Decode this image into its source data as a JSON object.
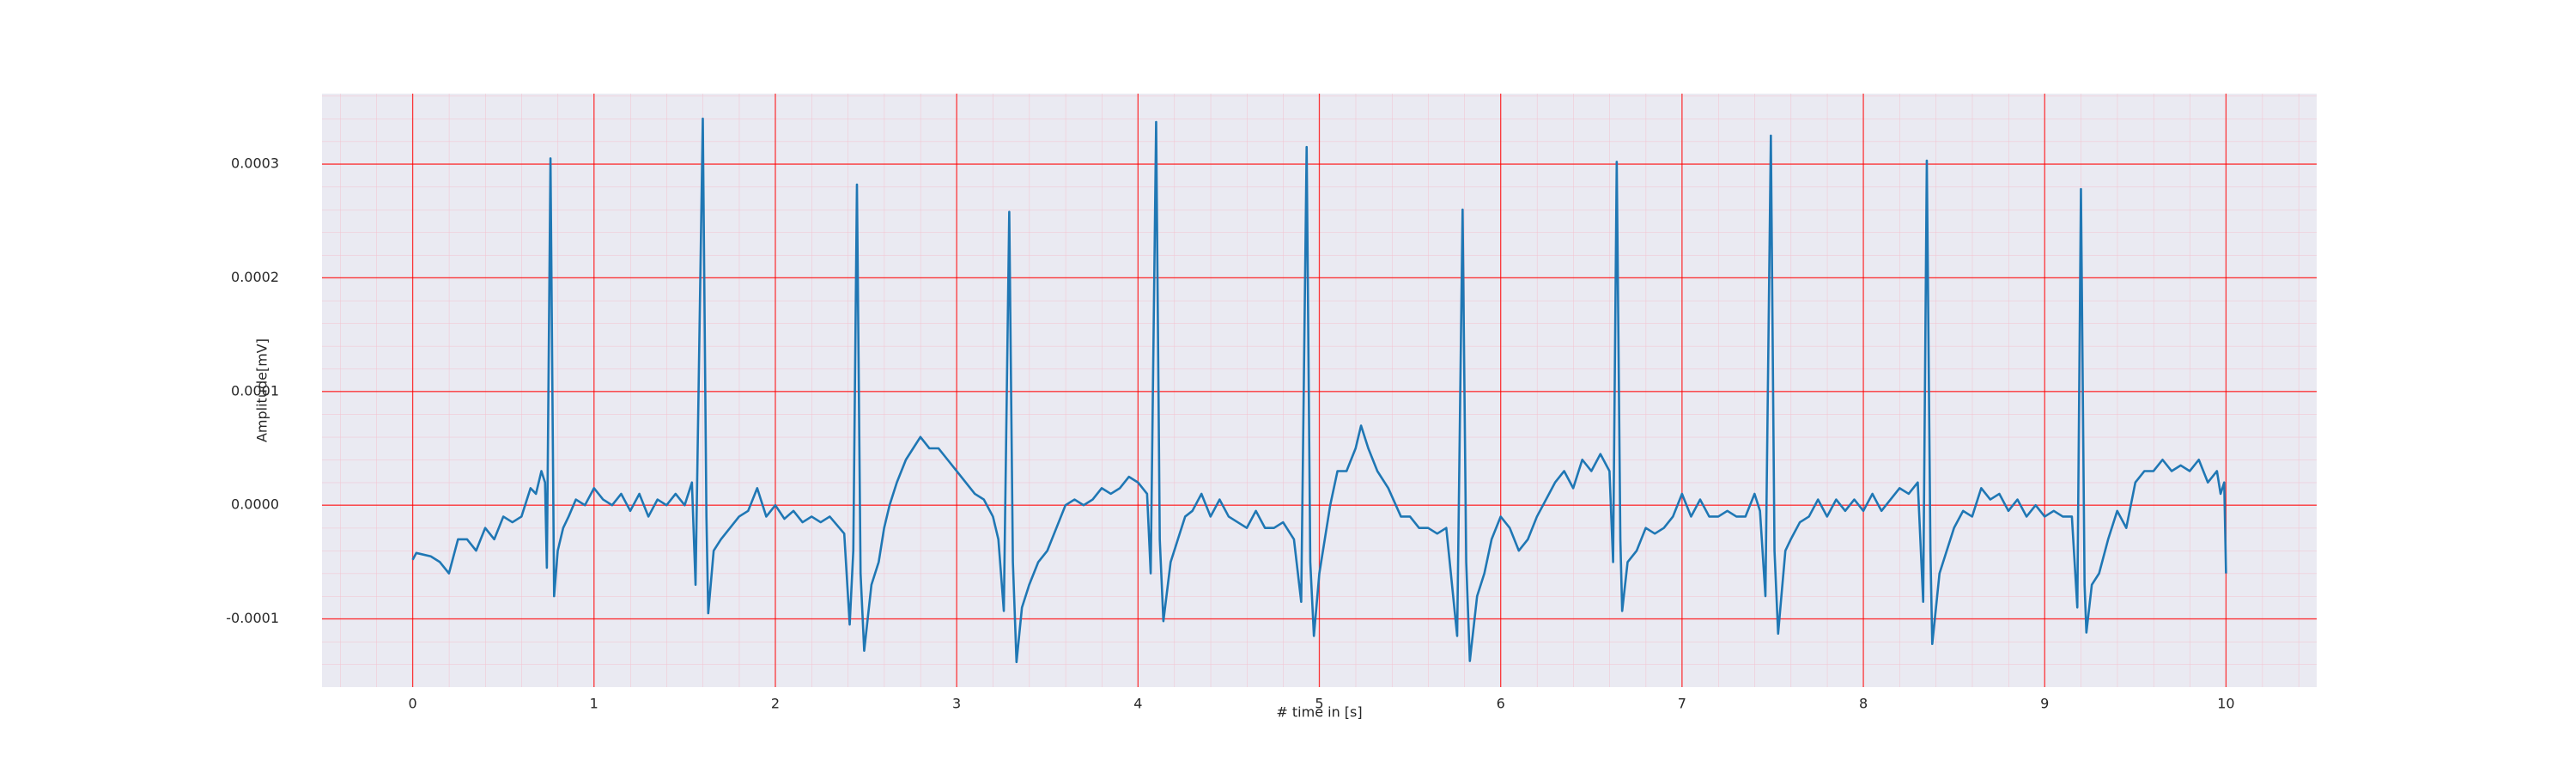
{
  "chart_data": {
    "type": "line",
    "xlabel": "# time in [s]",
    "ylabel": "Amplitude[mV]",
    "color": "#1f77b4",
    "grid": true,
    "minor_grid": true,
    "xlim": [
      -0.5,
      10.5
    ],
    "xticks": [
      0,
      1,
      2,
      3,
      4,
      5,
      6,
      7,
      8,
      9,
      10
    ],
    "ylim": [
      -0.00016,
      0.000362
    ],
    "yticks": [
      -0.0001,
      {
        "value": 0,
        "label": "0.0000"
      },
      0.0001,
      0.0002,
      0.0003
    ],
    "x": [
      0,
      0.02,
      0.1,
      0.15,
      0.2,
      0.25,
      0.3,
      0.35,
      0.4,
      0.45,
      0.5,
      0.55,
      0.6,
      0.65,
      0.68,
      0.71,
      0.73,
      0.74,
      0.76,
      0.78,
      0.8,
      0.83,
      0.86,
      0.9,
      0.95,
      1.0,
      1.05,
      1.1,
      1.15,
      1.2,
      1.25,
      1.3,
      1.35,
      1.4,
      1.45,
      1.5,
      1.54,
      1.56,
      1.6,
      1.62,
      1.63,
      1.66,
      1.7,
      1.75,
      1.8,
      1.85,
      1.9,
      1.95,
      2.0,
      2.05,
      2.1,
      2.15,
      2.2,
      2.25,
      2.3,
      2.38,
      2.41,
      2.43,
      2.45,
      2.47,
      2.49,
      2.53,
      2.57,
      2.6,
      2.63,
      2.67,
      2.72,
      2.76,
      2.8,
      2.85,
      2.9,
      2.95,
      3.0,
      3.05,
      3.1,
      3.15,
      3.2,
      3.23,
      3.26,
      3.29,
      3.31,
      3.33,
      3.36,
      3.4,
      3.45,
      3.5,
      3.55,
      3.6,
      3.65,
      3.7,
      3.75,
      3.8,
      3.85,
      3.9,
      3.95,
      4.0,
      4.05,
      4.07,
      4.1,
      4.12,
      4.14,
      4.18,
      4.22,
      4.26,
      4.3,
      4.35,
      4.4,
      4.45,
      4.5,
      4.55,
      4.6,
      4.65,
      4.7,
      4.75,
      4.8,
      4.86,
      4.9,
      4.93,
      4.95,
      4.97,
      5.0,
      5.03,
      5.06,
      5.1,
      5.15,
      5.2,
      5.23,
      5.27,
      5.32,
      5.38,
      5.45,
      5.5,
      5.55,
      5.6,
      5.65,
      5.7,
      5.76,
      5.79,
      5.81,
      5.83,
      5.87,
      5.91,
      5.95,
      6.0,
      6.05,
      6.1,
      6.15,
      6.2,
      6.25,
      6.3,
      6.35,
      6.4,
      6.45,
      6.5,
      6.55,
      6.6,
      6.62,
      6.64,
      6.66,
      6.67,
      6.7,
      6.75,
      6.8,
      6.85,
      6.9,
      6.95,
      7.0,
      7.05,
      7.1,
      7.15,
      7.2,
      7.25,
      7.3,
      7.35,
      7.4,
      7.43,
      7.46,
      7.49,
      7.51,
      7.53,
      7.57,
      7.6,
      7.65,
      7.7,
      7.75,
      7.8,
      7.85,
      7.9,
      7.95,
      8.0,
      8.05,
      8.1,
      8.15,
      8.2,
      8.25,
      8.3,
      8.33,
      8.35,
      8.37,
      8.38,
      8.42,
      8.46,
      8.5,
      8.55,
      8.6,
      8.65,
      8.7,
      8.75,
      8.8,
      8.85,
      8.9,
      8.95,
      9.0,
      9.05,
      9.1,
      9.15,
      9.18,
      9.2,
      9.22,
      9.23,
      9.26,
      9.3,
      9.35,
      9.4,
      9.45,
      9.5,
      9.55,
      9.6,
      9.65,
      9.7,
      9.75,
      9.8,
      9.85,
      9.9,
      9.95,
      9.97,
      9.99,
      10.0
    ],
    "values": [
      -4.8e-05,
      -4.2e-05,
      -4.5e-05,
      -5e-05,
      -6e-05,
      -3e-05,
      -3e-05,
      -4e-05,
      -2e-05,
      -3e-05,
      -1e-05,
      -1.5e-05,
      -1e-05,
      1.5e-05,
      1e-05,
      3e-05,
      2e-05,
      -5.5e-05,
      0.000305,
      -8e-05,
      -4e-05,
      -2e-05,
      -1e-05,
      5e-06,
      0,
      1.5e-05,
      5e-06,
      0,
      1e-05,
      -5e-06,
      1e-05,
      -1e-05,
      5e-06,
      0,
      1e-05,
      0,
      2e-05,
      -7e-05,
      0.00034,
      -1e-05,
      -9.5e-05,
      -4e-05,
      -3e-05,
      -2e-05,
      -1e-05,
      -5e-06,
      1.5e-05,
      -1e-05,
      0,
      -1.2e-05,
      -5e-06,
      -1.5e-05,
      -1e-05,
      -1.5e-05,
      -1e-05,
      -2.5e-05,
      -0.000105,
      -4e-05,
      0.000282,
      -6e-05,
      -0.000128,
      -7e-05,
      -5e-05,
      -2e-05,
      0,
      2e-05,
      4e-05,
      5e-05,
      6e-05,
      5e-05,
      5e-05,
      4e-05,
      3e-05,
      2e-05,
      1e-05,
      5e-06,
      -1e-05,
      -3e-05,
      -9.3e-05,
      0.000258,
      -5e-05,
      -0.000138,
      -9e-05,
      -7e-05,
      -5e-05,
      -4e-05,
      -2e-05,
      0,
      5e-06,
      0,
      5e-06,
      1.5e-05,
      1e-05,
      1.5e-05,
      2.5e-05,
      2e-05,
      1e-05,
      -6e-05,
      0.000337,
      -3e-05,
      -0.000102,
      -5e-05,
      -3e-05,
      -1e-05,
      -5e-06,
      1e-05,
      -1e-05,
      5e-06,
      -1e-05,
      -1.5e-05,
      -2e-05,
      -5e-06,
      -2e-05,
      -2e-05,
      -1.5e-05,
      -3e-05,
      -8.5e-05,
      0.000315,
      -5e-05,
      -0.000115,
      -6e-05,
      -3e-05,
      0,
      3e-05,
      3e-05,
      5e-05,
      7e-05,
      5e-05,
      3e-05,
      1.5e-05,
      -1e-05,
      -1e-05,
      -2e-05,
      -2e-05,
      -2.5e-05,
      -2e-05,
      -0.000115,
      0.00026,
      -5e-05,
      -0.000137,
      -8e-05,
      -6e-05,
      -3e-05,
      -1e-05,
      -2e-05,
      -4e-05,
      -3e-05,
      -1e-05,
      5e-06,
      2e-05,
      3e-05,
      1.5e-05,
      4e-05,
      3e-05,
      4.5e-05,
      3e-05,
      -5e-05,
      0.000302,
      -3e-05,
      -9.3e-05,
      -5e-05,
      -4e-05,
      -2e-05,
      -2.5e-05,
      -2e-05,
      -1e-05,
      1e-05,
      -1e-05,
      5e-06,
      -1e-05,
      -1e-05,
      -5e-06,
      -1e-05,
      -1e-05,
      1e-05,
      -5e-06,
      -8e-05,
      0.000325,
      -4e-05,
      -0.000113,
      -4e-05,
      -3e-05,
      -1.5e-05,
      -1e-05,
      5e-06,
      -1e-05,
      5e-06,
      -5e-06,
      5e-06,
      -5e-06,
      1e-05,
      -5e-06,
      5e-06,
      1.5e-05,
      1e-05,
      2e-05,
      -8.5e-05,
      0.000303,
      -4e-05,
      -0.000122,
      -6e-05,
      -4e-05,
      -2e-05,
      -5e-06,
      -1e-05,
      1.5e-05,
      5e-06,
      1e-05,
      -5e-06,
      5e-06,
      -1e-05,
      0,
      -1e-05,
      -5e-06,
      -1e-05,
      -1e-05,
      -9e-05,
      0.000278,
      -7e-05,
      -0.000112,
      -7e-05,
      -6e-05,
      -3e-05,
      -5e-06,
      -2e-05,
      2e-05,
      3e-05,
      3e-05,
      4e-05,
      3e-05,
      3.5e-05,
      3e-05,
      4e-05,
      2e-05,
      3e-05,
      1e-05,
      2e-05,
      -6e-05
    ]
  }
}
